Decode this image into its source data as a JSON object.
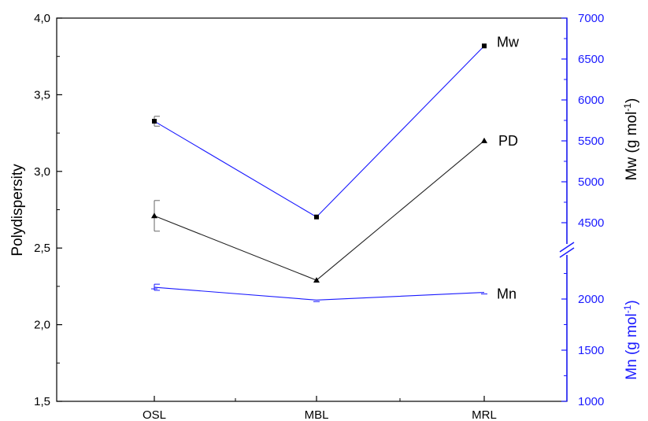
{
  "chart_data": {
    "type": "line",
    "categories": [
      "OSL",
      "MBL",
      "MRL"
    ],
    "axes": {
      "left": {
        "label": "Polydispersity",
        "ylim": [
          1.5,
          4.0
        ],
        "ticks": [
          "1,5",
          "2,0",
          "2,5",
          "3,0",
          "3,5",
          "4,0"
        ],
        "tick_values": [
          1.5,
          2.0,
          2.5,
          3.0,
          3.5,
          4.0
        ],
        "color": "#000000"
      },
      "right_upper": {
        "label_main": "Mw (g mol",
        "label_sup": "-1",
        "label_close": ")",
        "ylim": [
          4000,
          7000
        ],
        "ticks": [
          "4500",
          "5000",
          "5500",
          "6000",
          "6500",
          "7000"
        ],
        "tick_values": [
          4500,
          5000,
          5500,
          6000,
          6500,
          7000
        ],
        "color": "#1a1aff"
      },
      "right_lower": {
        "label_main": "Mn (g mol",
        "label_sup": "-1",
        "label_close": ")",
        "ylim": [
          1000,
          2500
        ],
        "ticks": [
          "1000",
          "1500",
          "2000"
        ],
        "tick_values": [
          1000,
          1500,
          2000
        ],
        "color": "#1a1aff"
      }
    },
    "series": [
      {
        "name": "Mw",
        "axis": "right_upper",
        "values": [
          5740,
          4570,
          6660
        ],
        "errors": [
          60,
          0,
          0
        ],
        "marker": "square",
        "color": "#1a1aff"
      },
      {
        "name": "PD",
        "axis": "left",
        "values": [
          2.71,
          2.29,
          3.2
        ],
        "errors": [
          0.1,
          0,
          0
        ],
        "marker": "triangle",
        "color": "#222222"
      },
      {
        "name": "Mn",
        "axis": "right_lower",
        "values": [
          2115,
          1990,
          2065
        ],
        "errors": [
          30,
          0,
          0
        ],
        "marker": "none",
        "color": "#1a1aff"
      }
    ],
    "grid": false
  }
}
